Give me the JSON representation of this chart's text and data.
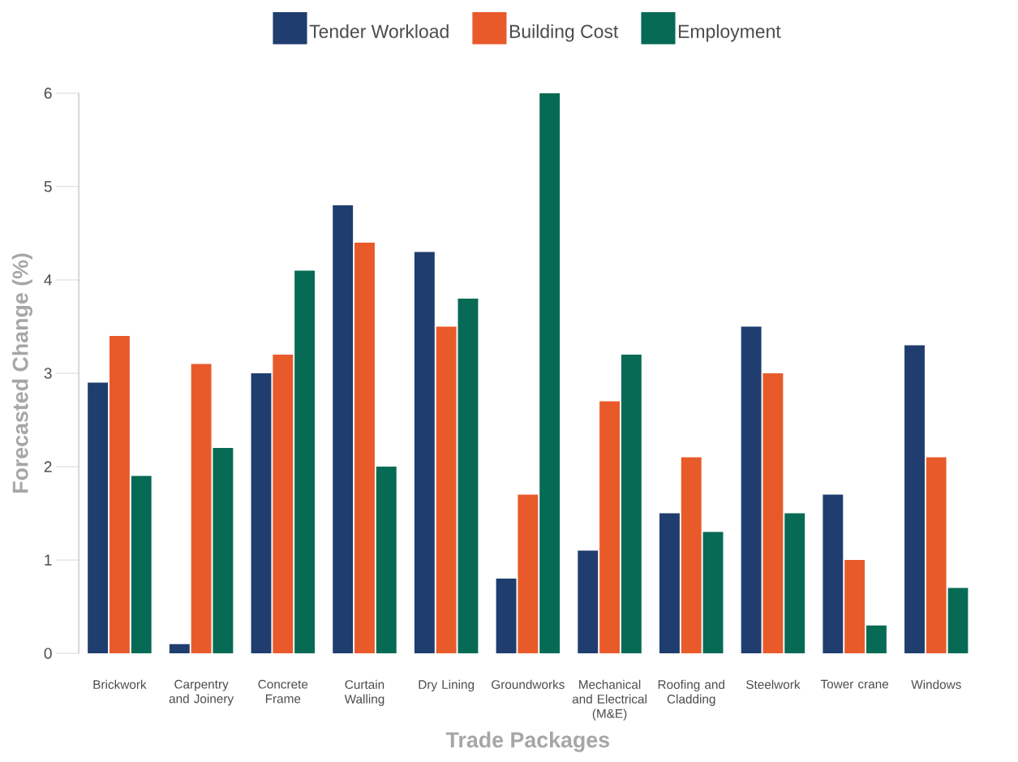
{
  "chart_data": {
    "type": "bar",
    "xlabel": "Trade Packages",
    "ylabel": "Forecasted Change (%)",
    "categories": [
      "Brickwork",
      "Carpentry and Joinery",
      "Concrete Frame",
      "Curtain Walling",
      "Dry Lining",
      "Groundworks",
      "Mechanical and Electrical (M&E)",
      "Roofing and Cladding",
      "Steelwork",
      "Tower crane",
      "Windows"
    ],
    "series": [
      {
        "name": "Tender Workload",
        "color": "#1f3d6e",
        "values": [
          2.9,
          0.1,
          3.0,
          4.8,
          4.3,
          0.8,
          1.1,
          1.5,
          3.5,
          1.7,
          3.3
        ]
      },
      {
        "name": "Building Cost",
        "color": "#e95a2a",
        "values": [
          3.4,
          3.1,
          3.2,
          4.4,
          3.5,
          1.7,
          2.7,
          2.1,
          3.0,
          1.0,
          2.1
        ]
      },
      {
        "name": "Employment",
        "color": "#066a55",
        "values": [
          1.9,
          2.2,
          4.1,
          2.0,
          3.8,
          6.0,
          3.2,
          1.3,
          1.5,
          0.3,
          0.7
        ]
      }
    ],
    "ylim": [
      0,
      6
    ],
    "yticks": [
      0,
      1,
      2,
      3,
      4,
      5,
      6
    ],
    "legend": "top"
  }
}
